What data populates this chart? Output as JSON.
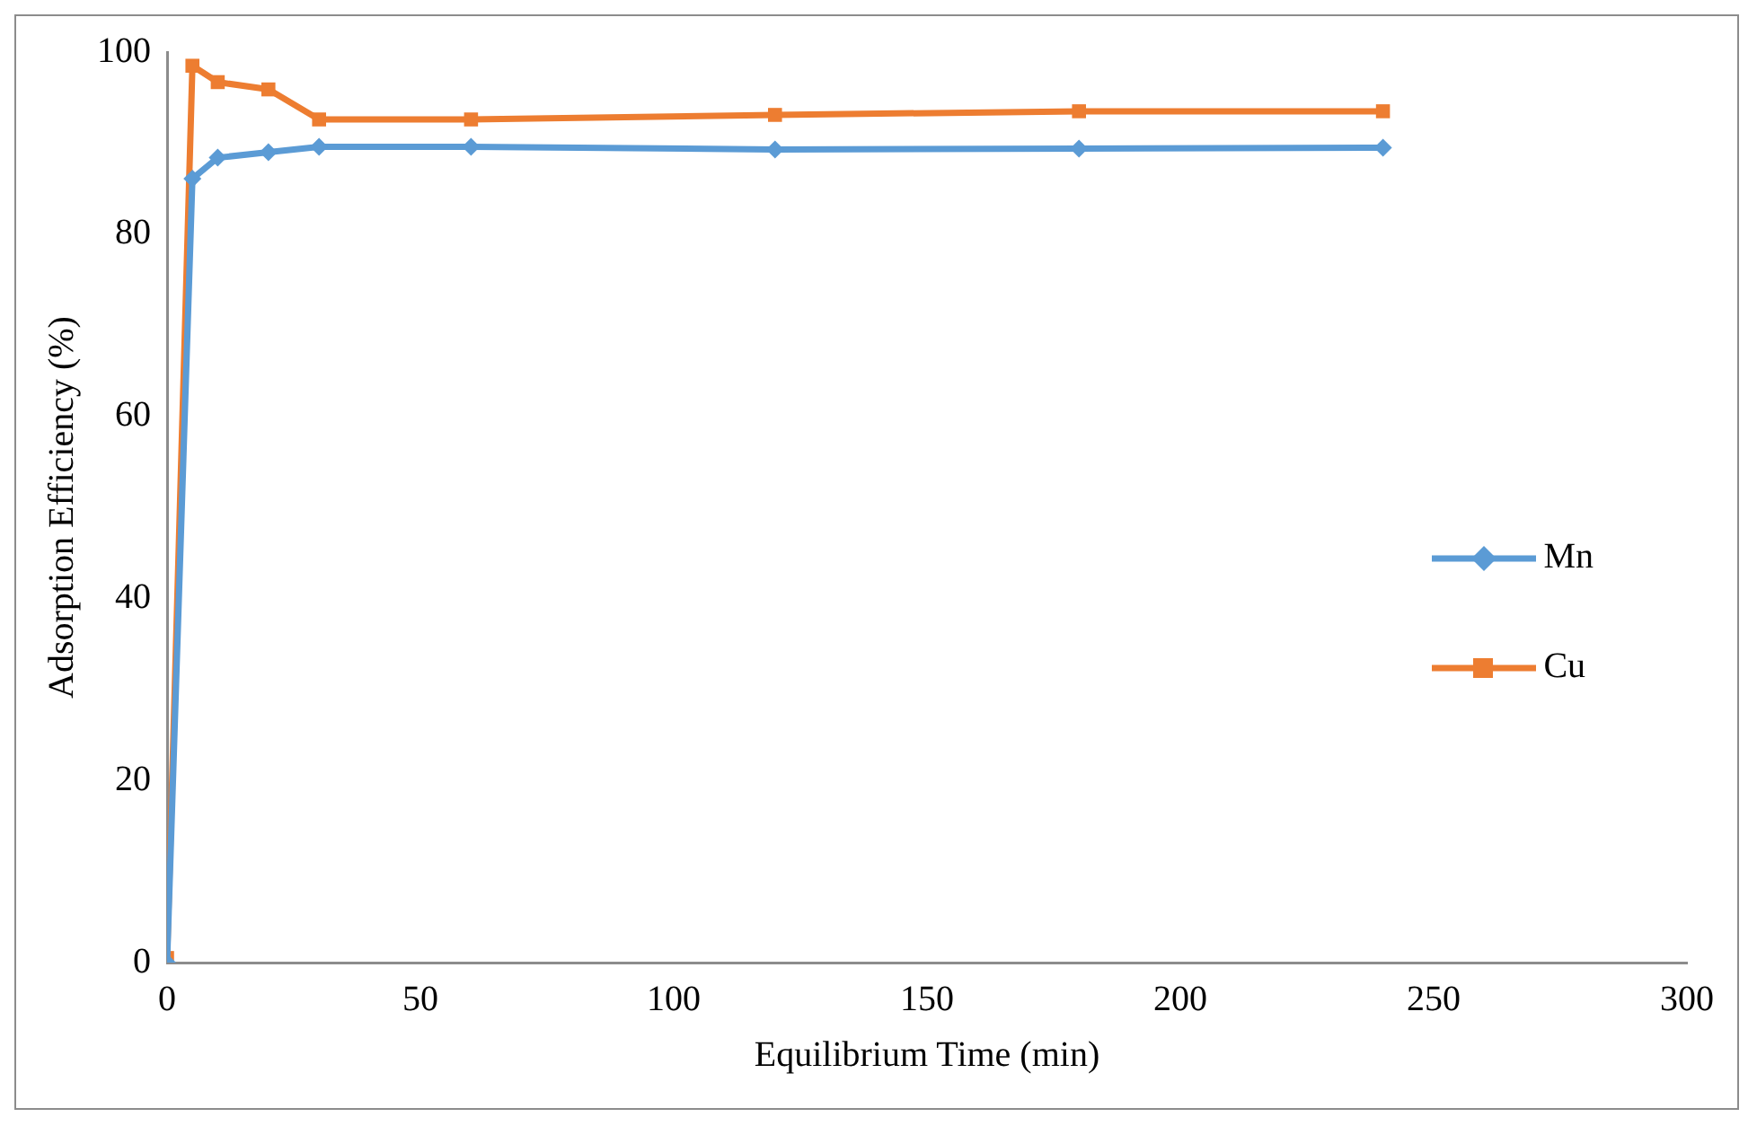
{
  "chart_data": {
    "type": "line",
    "xlabel": "Equilibrium Time (min)",
    "ylabel": "Adsorption Efficiency (%)",
    "xlim": [
      0,
      300
    ],
    "xticks": [
      0,
      50,
      100,
      150,
      200,
      250,
      300
    ],
    "ylim": [
      0,
      100
    ],
    "yticks": [
      0,
      20,
      40,
      60,
      80,
      100
    ],
    "grid": false,
    "legend": "right",
    "line_style": "solid",
    "series": [
      {
        "name": "Mn",
        "color": "#5b9bd5",
        "marker": "diamond",
        "x": [
          0,
          5,
          10,
          20,
          30,
          60,
          120,
          180,
          240
        ],
        "values": [
          0,
          86.1,
          88.4,
          89.0,
          89.6,
          89.6,
          89.3,
          89.4,
          89.5
        ]
      },
      {
        "name": "Cu",
        "color": "#ed7d31",
        "marker": "square",
        "x": [
          0,
          5,
          10,
          20,
          30,
          60,
          120,
          180,
          240
        ],
        "values": [
          0.5,
          98.5,
          96.7,
          95.9,
          92.6,
          92.6,
          93.1,
          93.5,
          93.5
        ]
      }
    ]
  }
}
